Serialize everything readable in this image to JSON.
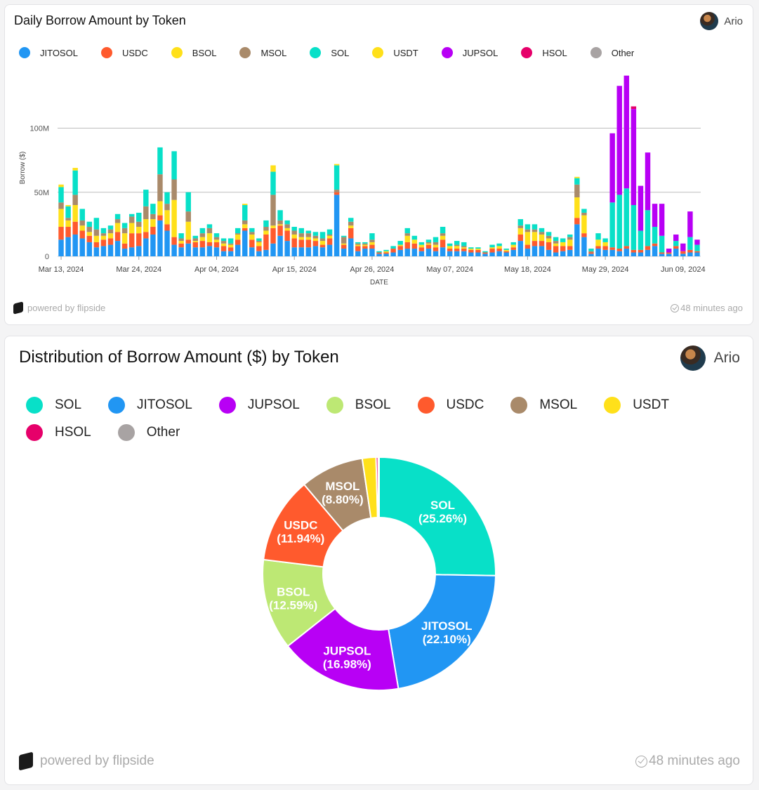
{
  "bar_card": {
    "title": "Daily Borrow Amount by Token",
    "author": "Ario",
    "footer_left": "powered by flipside",
    "footer_right": "48 minutes ago"
  },
  "donut_card": {
    "title": "Distribution of Borrow Amount ($) by Token",
    "author": "Ario",
    "footer_left": "powered by flipside",
    "footer_right": "48 minutes ago"
  },
  "colors": {
    "JITOSOL": "#2196f3",
    "USDC": "#ff5a2d",
    "BSOL": "#ffe01a",
    "BSOL_donut": "#bde874",
    "MSOL": "#a98a6a",
    "SOL": "#08e0c8",
    "USDT": "#ffe01a",
    "JUPSOL": "#b800f5",
    "HSOL": "#e6006a",
    "Other": "#a8a3a3"
  },
  "chart_data": [
    {
      "type": "bar",
      "stacked": true,
      "title": "Daily Borrow Amount by Token",
      "xlabel": "DATE",
      "ylabel": "Borrow ($)",
      "ylim": [
        0,
        140000000
      ],
      "yticks": [
        0,
        50000000,
        100000000
      ],
      "ytick_labels": [
        "0",
        "50M",
        "100M"
      ],
      "start_date": "2024-03-13",
      "xtick_labels": [
        "Mar 13, 2024",
        "Mar 24, 2024",
        "Apr 04, 2024",
        "Apr 15, 2024",
        "Apr 26, 2024",
        "May 07, 2024",
        "May 18, 2024",
        "May 29, 2024",
        "Jun 09, 2024"
      ],
      "xtick_day_index": [
        0,
        11,
        22,
        33,
        44,
        55,
        66,
        77,
        88
      ],
      "legend": [
        "JITOSOL",
        "USDC",
        "BSOL",
        "MSOL",
        "SOL",
        "USDT",
        "JUPSOL",
        "HSOL",
        "Other"
      ],
      "series_order": [
        "JITOSOL",
        "USDC",
        "BSOL",
        "MSOL",
        "SOL",
        "USDT",
        "JUPSOL",
        "HSOL"
      ],
      "days": [
        {
          "JITOSOL": 13,
          "USDC": 10,
          "BSOL": 14,
          "MSOL": 5,
          "SOL": 12,
          "USDT": 2
        },
        {
          "JITOSOL": 15,
          "USDC": 8,
          "BSOL": 5,
          "MSOL": 2,
          "SOL": 9,
          "USDT": 1
        },
        {
          "JITOSOL": 17,
          "USDC": 10,
          "BSOL": 13,
          "MSOL": 8,
          "SOL": 19,
          "USDT": 2
        },
        {
          "JITOSOL": 14,
          "USDC": 6,
          "BSOL": 4,
          "MSOL": 4,
          "SOL": 9
        },
        {
          "JITOSOL": 11,
          "USDC": 5,
          "BSOL": 3,
          "MSOL": 4,
          "SOL": 4
        },
        {
          "JITOSOL": 7,
          "USDC": 4,
          "BSOL": 5,
          "MSOL": 5,
          "SOL": 9
        },
        {
          "JITOSOL": 8,
          "USDC": 5,
          "BSOL": 3,
          "MSOL": 2,
          "SOL": 4
        },
        {
          "JITOSOL": 9,
          "USDC": 5,
          "BSOL": 4,
          "MSOL": 3,
          "SOL": 3
        },
        {
          "JITOSOL": 12,
          "USDC": 7,
          "BSOL": 7,
          "MSOL": 3,
          "SOL": 4
        },
        {
          "JITOSOL": 6,
          "USDC": 4,
          "BSOL": 8,
          "MSOL": 4,
          "SOL": 4
        },
        {
          "JITOSOL": 7,
          "USDC": 11,
          "BSOL": 8,
          "MSOL": 5,
          "SOL": 2
        },
        {
          "JITOSOL": 8,
          "USDC": 10,
          "BSOL": 5,
          "MSOL": 4,
          "SOL": 7
        },
        {
          "JITOSOL": 14,
          "USDC": 5,
          "BSOL": 10,
          "MSOL": 10,
          "SOL": 13
        },
        {
          "JITOSOL": 17,
          "USDC": 6,
          "BSOL": 6,
          "MSOL": 4,
          "SOL": 8
        },
        {
          "JITOSOL": 28,
          "USDC": 4,
          "BSOL": 11,
          "MSOL": 21,
          "SOL": 21
        },
        {
          "JITOSOL": 20,
          "USDC": 5,
          "BSOL": 11,
          "MSOL": 5,
          "SOL": 9
        },
        {
          "JITOSOL": 9,
          "USDC": 6,
          "BSOL": 29,
          "MSOL": 16,
          "SOL": 22
        },
        {
          "JITOSOL": 7,
          "USDC": 3,
          "BSOL": 2,
          "MSOL": 2,
          "SOL": 4
        },
        {
          "JITOSOL": 10,
          "USDC": 3,
          "BSOL": 14,
          "MSOL": 8,
          "SOL": 15
        },
        {
          "JITOSOL": 7,
          "USDC": 4,
          "BSOL": 1,
          "MSOL": 2,
          "SOL": 2
        },
        {
          "JITOSOL": 7,
          "USDC": 5,
          "BSOL": 3,
          "MSOL": 3,
          "SOL": 4
        },
        {
          "JITOSOL": 8,
          "USDC": 3,
          "BSOL": 7,
          "MSOL": 4,
          "SOL": 3
        },
        {
          "JITOSOL": 7,
          "USDC": 4,
          "BSOL": 2,
          "MSOL": 2,
          "SOL": 3
        },
        {
          "JITOSOL": 4,
          "USDC": 4,
          "BSOL": 2,
          "MSOL": 2,
          "SOL": 2
        },
        {
          "JITOSOL": 4,
          "USDC": 3,
          "BSOL": 2,
          "MSOL": 1,
          "SOL": 4
        },
        {
          "JITOSOL": 9,
          "USDC": 4,
          "BSOL": 4,
          "MSOL": 1,
          "SOL": 4
        },
        {
          "JITOSOL": 20,
          "USDC": 2,
          "BSOL": 3,
          "MSOL": 3,
          "SOL": 12,
          "USDT": 1
        },
        {
          "JITOSOL": 7,
          "USDC": 6,
          "BSOL": 4,
          "MSOL": 2,
          "SOL": 3
        },
        {
          "JITOSOL": 4,
          "USDC": 4,
          "BSOL": 3,
          "MSOL": 1,
          "SOL": 2
        },
        {
          "JITOSOL": 5,
          "USDC": 12,
          "BSOL": 3,
          "MSOL": 3,
          "SOL": 5
        },
        {
          "JITOSOL": 10,
          "USDC": 12,
          "BSOL": 2,
          "MSOL": 24,
          "SOL": 18,
          "USDT": 5
        },
        {
          "JITOSOL": 16,
          "USDC": 8,
          "BSOL": 1,
          "MSOL": 3,
          "SOL": 8
        },
        {
          "JITOSOL": 12,
          "USDC": 8,
          "BSOL": 2,
          "MSOL": 3,
          "SOL": 3
        },
        {
          "JITOSOL": 7,
          "USDC": 7,
          "BSOL": 3,
          "MSOL": 3,
          "SOL": 3
        },
        {
          "JITOSOL": 7,
          "USDC": 6,
          "BSOL": 2,
          "MSOL": 3,
          "SOL": 4
        },
        {
          "JITOSOL": 7,
          "USDC": 6,
          "BSOL": 2,
          "MSOL": 3,
          "SOL": 2
        },
        {
          "JITOSOL": 8,
          "USDC": 4,
          "BSOL": 2,
          "MSOL": 2,
          "SOL": 3
        },
        {
          "JITOSOL": 7,
          "USDC": 2,
          "BSOL": 3,
          "MSOL": 2,
          "SOL": 5
        },
        {
          "JITOSOL": 9,
          "USDC": 5,
          "BSOL": 2,
          "MSOL": 1,
          "SOL": 4
        },
        {
          "JITOSOL": 48,
          "USDC": 2,
          "MSOL": 2,
          "SOL": 19,
          "USDT": 1
        },
        {
          "JITOSOL": 6,
          "USDC": 3,
          "BSOL": 1,
          "MSOL": 5,
          "SOL": 1
        },
        {
          "JITOSOL": 14,
          "USDC": 8,
          "BSOL": 2,
          "MSOL": 3,
          "SOL": 3
        },
        {
          "JITOSOL": 4,
          "USDC": 4,
          "BSOL": 1,
          "MSOL": 1,
          "SOL": 1
        },
        {
          "JITOSOL": 6,
          "USDC": 2,
          "BSOL": 1,
          "MSOL": 1,
          "SOL": 1
        },
        {
          "JITOSOL": 6,
          "USDC": 3,
          "BSOL": 2,
          "MSOL": 2,
          "SOL": 5
        },
        {
          "JITOSOL": 2,
          "USDC": 1,
          "SOL": 1
        },
        {
          "JITOSOL": 2,
          "USDC": 1,
          "BSOL": 1,
          "SOL": 1
        },
        {
          "JITOSOL": 3,
          "USDC": 3,
          "SOL": 2
        },
        {
          "JITOSOL": 5,
          "USDC": 3,
          "BSOL": 1,
          "SOL": 3
        },
        {
          "JITOSOL": 6,
          "USDC": 5,
          "BSOL": 5,
          "MSOL": 2,
          "SOL": 4
        },
        {
          "JITOSOL": 6,
          "USDC": 4,
          "BSOL": 3,
          "SOL": 3
        },
        {
          "JITOSOL": 4,
          "USDC": 3,
          "BSOL": 2,
          "SOL": 2
        },
        {
          "JITOSOL": 6,
          "USDC": 3,
          "BSOL": 1,
          "MSOL": 1,
          "SOL": 2
        },
        {
          "JITOSOL": 4,
          "USDC": 3,
          "BSOL": 2,
          "MSOL": 2,
          "SOL": 4
        },
        {
          "JITOSOL": 7,
          "USDC": 6,
          "BSOL": 3,
          "MSOL": 2,
          "SOL": 5
        },
        {
          "JITOSOL": 4,
          "USDC": 2,
          "BSOL": 2,
          "SOL": 2
        },
        {
          "JITOSOL": 4,
          "USDC": 2,
          "BSOL": 2,
          "MSOL": 1,
          "SOL": 3
        },
        {
          "JITOSOL": 4,
          "USDC": 2,
          "BSOL": 1,
          "MSOL": 1,
          "SOL": 3
        },
        {
          "JITOSOL": 3,
          "USDC": 2,
          "BSOL": 1,
          "SOL": 1
        },
        {
          "JITOSOL": 3,
          "USDC": 2,
          "BSOL": 1,
          "SOL": 1
        },
        {
          "JITOSOL": 2,
          "USDC": 1,
          "SOL": 1
        },
        {
          "JITOSOL": 3,
          "USDC": 3,
          "BSOL": 1,
          "SOL": 2
        },
        {
          "JITOSOL": 4,
          "USDC": 2,
          "BSOL": 2,
          "SOL": 2
        },
        {
          "JITOSOL": 3,
          "USDC": 1,
          "BSOL": 1,
          "SOL": 1
        },
        {
          "JITOSOL": 5,
          "USDC": 2,
          "BSOL": 2,
          "SOL": 2
        },
        {
          "JITOSOL": 12,
          "USDC": 5,
          "BSOL": 5,
          "MSOL": 2,
          "SOL": 5
        },
        {
          "JITOSOL": 6,
          "USDC": 3,
          "BSOL": 10,
          "MSOL": 2,
          "SOL": 4
        },
        {
          "JITOSOL": 8,
          "USDC": 4,
          "BSOL": 7,
          "MSOL": 2,
          "SOL": 4
        },
        {
          "JITOSOL": 8,
          "USDC": 4,
          "BSOL": 5,
          "MSOL": 2,
          "SOL": 3
        },
        {
          "JITOSOL": 5,
          "USDC": 6,
          "BSOL": 3,
          "MSOL": 2,
          "SOL": 3
        },
        {
          "JITOSOL": 3,
          "USDC": 5,
          "BSOL": 2,
          "MSOL": 2,
          "SOL": 3
        },
        {
          "JITOSOL": 4,
          "USDC": 4,
          "BSOL": 3,
          "SOL": 3
        },
        {
          "JITOSOL": 5,
          "USDC": 3,
          "BSOL": 5,
          "MSOL": 2,
          "SOL": 2
        },
        {
          "JITOSOL": 25,
          "USDC": 5,
          "BSOL": 16,
          "MSOL": 10,
          "SOL": 5,
          "USDT": 1
        },
        {
          "JITOSOL": 15,
          "USDC": 3,
          "BSOL": 14,
          "MSOL": 2,
          "SOL": 3
        },
        {
          "JITOSOL": 2,
          "USDC": 1,
          "MSOL": 1,
          "SOL": 2
        },
        {
          "JITOSOL": 6,
          "USDC": 2,
          "BSOL": 5,
          "SOL": 5
        },
        {
          "JITOSOL": 5,
          "USDC": 3,
          "BSOL": 3,
          "SOL": 3
        },
        {
          "JITOSOL": 5,
          "USDC": 2,
          "SOL": 35,
          "JUPSOL": 54
        },
        {
          "JITOSOL": 4,
          "USDC": 2,
          "SOL": 42,
          "JUPSOL": 85
        },
        {
          "JITOSOL": 6,
          "USDC": 2,
          "SOL": 45,
          "JUPSOL": 88
        },
        {
          "JITOSOL": 3,
          "USDC": 2,
          "SOL": 35,
          "JUPSOL": 75,
          "HSOL": 2
        },
        {
          "JITOSOL": 3,
          "USDC": 2,
          "SOL": 15,
          "JUPSOL": 35
        },
        {
          "JITOSOL": 5,
          "USDC": 3,
          "SOL": 28,
          "JUPSOL": 45
        },
        {
          "JITOSOL": 8,
          "USDC": 2,
          "SOL": 13,
          "JUPSOL": 18
        },
        {
          "JITOSOL": 2,
          "USDC": 1,
          "SOL": 13,
          "JUPSOL": 25
        },
        {
          "JITOSOL": 2,
          "USDC": 1,
          "JUPSOL": 3
        },
        {
          "JITOSOL": 6,
          "USDC": 2,
          "SOL": 4,
          "JUPSOL": 5
        },
        {
          "JITOSOL": 2,
          "USDC": 2,
          "JUPSOL": 6
        },
        {
          "JITOSOL": 3,
          "USDC": 2,
          "SOL": 10,
          "JUPSOL": 20
        },
        {
          "JITOSOL": 3,
          "USDC": 1,
          "SOL": 5,
          "JUPSOL": 4
        }
      ],
      "value_unit": "M"
    },
    {
      "type": "pie",
      "donut": true,
      "title": "Distribution of Borrow Amount ($) by Token",
      "legend": [
        "SOL",
        "JITOSOL",
        "JUPSOL",
        "BSOL",
        "USDC",
        "MSOL",
        "USDT",
        "HSOL",
        "Other"
      ],
      "slices": [
        {
          "name": "SOL",
          "value": 25.26,
          "label": "SOL",
          "pct_label": "(25.26%)"
        },
        {
          "name": "JITOSOL",
          "value": 22.1,
          "label": "JITOSOL",
          "pct_label": "(22.10%)"
        },
        {
          "name": "JUPSOL",
          "value": 16.98,
          "label": "JUPSOL",
          "pct_label": "(16.98%)"
        },
        {
          "name": "BSOL",
          "value": 12.59,
          "label": "BSOL",
          "pct_label": "(12.59%)"
        },
        {
          "name": "USDC",
          "value": 11.94,
          "label": "USDC",
          "pct_label": "(11.94%)"
        },
        {
          "name": "MSOL",
          "value": 8.8,
          "label": "MSOL",
          "pct_label": "(8.80%)"
        },
        {
          "name": "USDT",
          "value": 1.9,
          "label": "",
          "pct_label": ""
        },
        {
          "name": "HSOL",
          "value": 0.3,
          "label": "",
          "pct_label": ""
        },
        {
          "name": "Other",
          "value": 0.13,
          "label": "",
          "pct_label": ""
        }
      ]
    }
  ]
}
